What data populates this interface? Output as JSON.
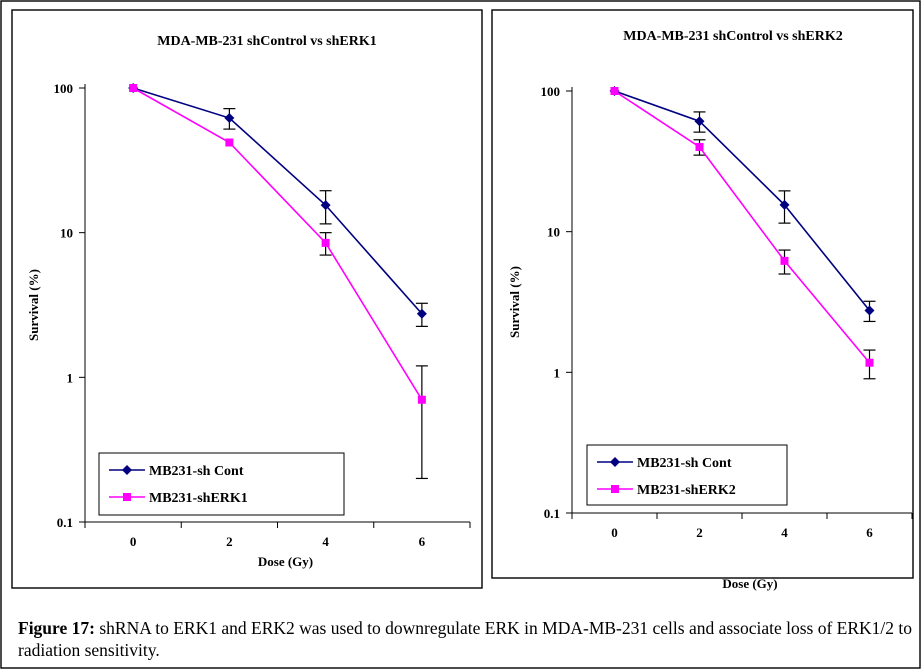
{
  "caption": {
    "label": "Figure 17:",
    "text": " shRNA to ERK1 and ERK2 was used to downregulate ERK in MDA-MB-231 cells and associate  loss of ERK1/2 to radiation sensitivity."
  },
  "chart_data": [
    {
      "type": "line",
      "title": "MDA-MB-231 shControl vs shERK1",
      "xlabel": "Dose (Gy)",
      "ylabel": "Survival (%)",
      "categories": [
        "0",
        "2",
        "4",
        "6"
      ],
      "yscale": "log",
      "ylim": [
        0.1,
        100
      ],
      "yticks": [
        "0.1",
        "1",
        "10",
        "100"
      ],
      "legend_position": "lower-left",
      "series": [
        {
          "name": "MB231-sh Cont",
          "color": "#000080",
          "marker": "diamond",
          "values": [
            100,
            62,
            15.5,
            2.75
          ],
          "errors": [
            0,
            10,
            4,
            0.5
          ]
        },
        {
          "name": "MB231-shERK1",
          "color": "#ff00ff",
          "marker": "square",
          "values": [
            100,
            42,
            8.5,
            0.7
          ],
          "errors": [
            0,
            0,
            1.5,
            0.5
          ]
        }
      ]
    },
    {
      "type": "line",
      "title": "MDA-MB-231 shControl vs shERK2",
      "xlabel": "Dose (Gy)",
      "ylabel": "Survival (%)",
      "categories": [
        "0",
        "2",
        "4",
        "6"
      ],
      "yscale": "log",
      "ylim": [
        0.1,
        100
      ],
      "yticks": [
        "0.1",
        "1",
        "10",
        "100"
      ],
      "legend_position": "lower-left",
      "series": [
        {
          "name": "MB231-sh Cont",
          "color": "#000080",
          "marker": "diamond",
          "values": [
            100,
            61,
            15.5,
            2.75
          ],
          "errors": [
            0,
            10,
            4,
            0.45
          ]
        },
        {
          "name": "MB231-shERK2",
          "color": "#ff00ff",
          "marker": "square",
          "values": [
            100,
            40,
            6.2,
            1.17
          ],
          "errors": [
            0,
            5,
            1.2,
            0.27
          ]
        }
      ]
    }
  ]
}
